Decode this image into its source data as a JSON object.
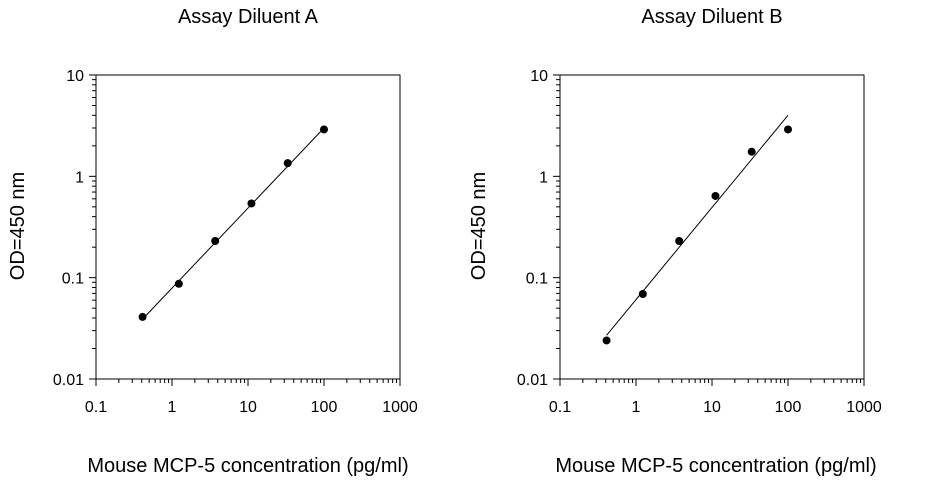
{
  "chart_data": [
    {
      "type": "scatter",
      "title": "Assay Diluent A",
      "xlabel": "Mouse MCP-5 concentration (pg/ml)",
      "ylabel": "OD=450 nm",
      "xscale": "log",
      "yscale": "log",
      "xlim": [
        0.1,
        1000
      ],
      "ylim": [
        0.01,
        10
      ],
      "xticks": [
        "0.1",
        "1",
        "10",
        "100",
        "1000"
      ],
      "yticks": [
        "0.01",
        "0.1",
        "1",
        "10"
      ],
      "grid": false,
      "series": [
        {
          "x": [
            0.41,
            1.23,
            3.7,
            11.1,
            33.3,
            100
          ],
          "y": [
            0.041,
            0.087,
            0.23,
            0.54,
            1.35,
            2.9
          ],
          "marker": "circle",
          "color": "#000000",
          "fit_line": true
        }
      ],
      "fit_line": {
        "x": [
          0.41,
          100
        ],
        "y": [
          0.039,
          3.0
        ],
        "color": "#000000"
      }
    },
    {
      "type": "scatter",
      "title": "Assay Diluent B",
      "xlabel": "Mouse MCP-5 concentration (pg/ml)",
      "ylabel": "OD=450 nm",
      "xscale": "log",
      "yscale": "log",
      "xlim": [
        0.1,
        1000
      ],
      "ylim": [
        0.01,
        10
      ],
      "xticks": [
        "0.1",
        "1",
        "10",
        "100",
        "1000"
      ],
      "yticks": [
        "0.01",
        "0.1",
        "1",
        "10"
      ],
      "grid": false,
      "series": [
        {
          "x": [
            0.41,
            1.23,
            3.7,
            11.1,
            33.3,
            100
          ],
          "y": [
            0.024,
            0.069,
            0.23,
            0.64,
            1.75,
            2.9
          ],
          "marker": "circle",
          "color": "#000000",
          "fit_line": true
        }
      ],
      "fit_line": {
        "x": [
          0.41,
          100
        ],
        "y": [
          0.027,
          4.0
        ],
        "color": "#000000"
      }
    }
  ]
}
